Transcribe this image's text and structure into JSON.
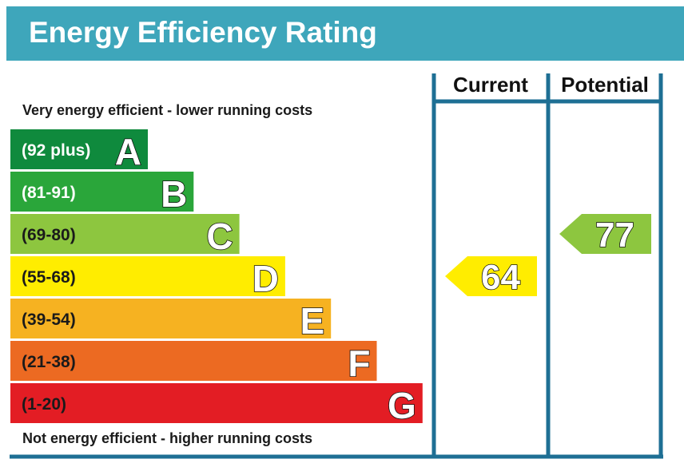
{
  "title": "Energy Efficiency Rating",
  "top_caption": "Very energy efficient - lower running costs",
  "bottom_caption": "Not energy efficient - higher running costs",
  "columns": {
    "current": "Current",
    "potential": "Potential"
  },
  "colors": {
    "header": "#3ea6bb",
    "frame": "#1e6f94"
  },
  "chart_data": {
    "type": "bar",
    "bands": [
      {
        "letter": "A",
        "range": "(92 plus)",
        "color": "#0f8a3d",
        "text_color": "#ffffff"
      },
      {
        "letter": "B",
        "range": "(81-91)",
        "color": "#2aa63a",
        "text_color": "#ffffff"
      },
      {
        "letter": "C",
        "range": "(69-80)",
        "color": "#8dc63f",
        "text_color": "#1a1a1a"
      },
      {
        "letter": "D",
        "range": "(55-68)",
        "color": "#ffed00",
        "text_color": "#1a1a1a"
      },
      {
        "letter": "E",
        "range": "(39-54)",
        "color": "#f6b221",
        "text_color": "#1a1a1a"
      },
      {
        "letter": "F",
        "range": "(21-38)",
        "color": "#ec6a22",
        "text_color": "#1a1a1a"
      },
      {
        "letter": "G",
        "range": "(1-20)",
        "color": "#e31d24",
        "text_color": "#1a1a1a"
      }
    ],
    "current": {
      "value": 64,
      "band": "D"
    },
    "potential": {
      "value": 77,
      "band": "C"
    }
  }
}
